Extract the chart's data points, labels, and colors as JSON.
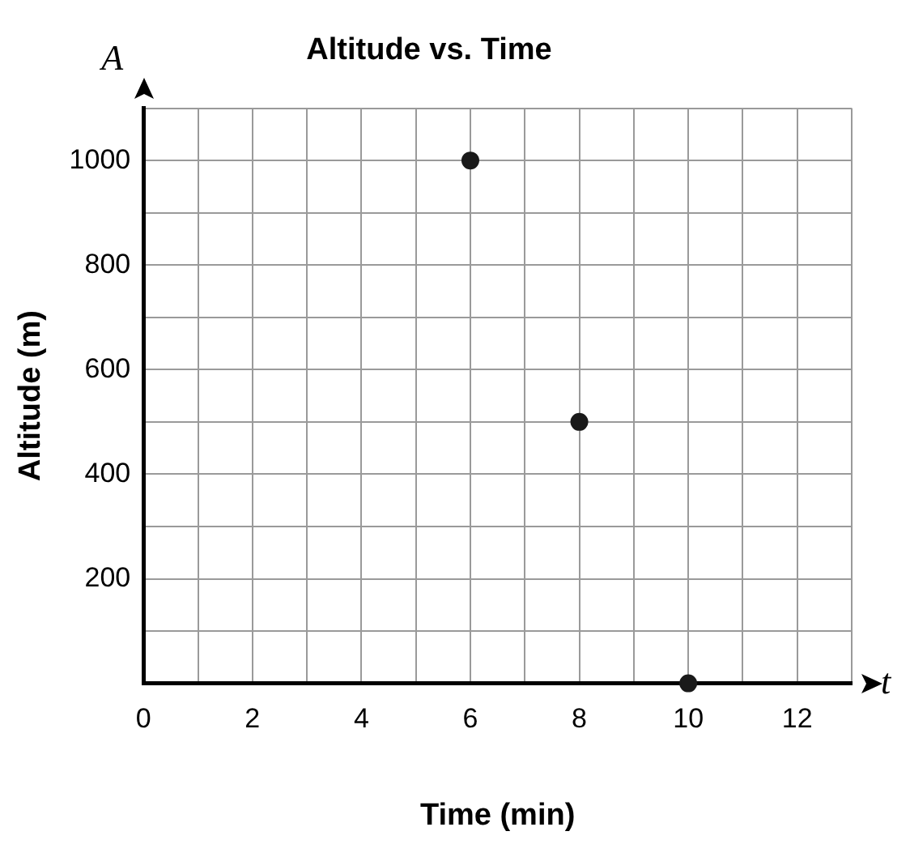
{
  "chart_data": {
    "type": "scatter",
    "title": "Altitude vs. Time",
    "xlabel": "Time (min)",
    "ylabel": "Altitude (m)",
    "annotations": [
      "A",
      "t"
    ],
    "x": [
      6,
      8,
      10
    ],
    "values": [
      1000,
      500,
      0
    ],
    "color": "#1a1a1a",
    "marker": "circle",
    "xlim": [
      0,
      13
    ],
    "ylim": [
      0,
      1100
    ],
    "xticks": [
      0,
      {
        "value": 1,
        "label": null
      },
      2,
      {
        "value": 3,
        "label": null
      },
      4,
      {
        "value": 5,
        "label": null
      },
      6,
      {
        "value": 7,
        "label": null
      },
      8,
      {
        "value": 9,
        "label": null
      },
      10,
      {
        "value": 11,
        "label": null
      },
      12,
      {
        "value": 13,
        "label": null
      }
    ],
    "yticks": [
      {
        "value": 0,
        "label": null
      },
      {
        "value": 100,
        "label": null
      },
      200,
      {
        "value": 300,
        "label": null
      },
      400,
      {
        "value": 500,
        "label": null
      },
      600,
      {
        "value": 700,
        "label": null
      },
      800,
      {
        "value": 900,
        "label": null
      },
      1000,
      {
        "value": 1100,
        "label": null
      }
    ],
    "grid": true,
    "legend": false
  }
}
